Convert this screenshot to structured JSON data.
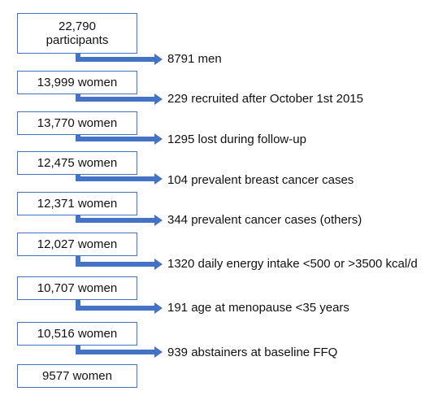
{
  "boxes": [
    {
      "line1": "22,790",
      "line2": "participants"
    },
    {
      "label": "13,999 women"
    },
    {
      "label": "13,770 women"
    },
    {
      "label": "12,475 women"
    },
    {
      "label": "12,371 women"
    },
    {
      "label": "12,027 women"
    },
    {
      "label": "10,707 women"
    },
    {
      "label": "10,516 women"
    },
    {
      "label": "9577 women"
    }
  ],
  "exclusions": [
    "8791 men",
    "229 recruited after October 1st 2015",
    "1295 lost during follow-up",
    "104 prevalent breast cancer cases",
    "344 prevalent cancer cases (others)",
    "1320 daily energy intake <500 or >3500 kcal/d",
    "191 age at menopause <35 years",
    "939 abstainers at baseline FFQ"
  ],
  "colors": {
    "box_border": "#4472c4",
    "arrow": "#4472c4"
  }
}
